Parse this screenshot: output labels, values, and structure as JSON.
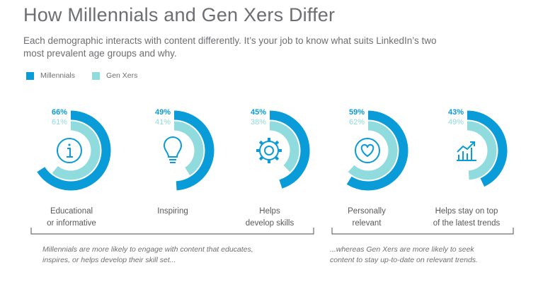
{
  "title": "How Millennials and Gen Xers Differ",
  "subtitle": "Each demographic interacts with content differently. It’s your job to know what suits LinkedIn’s two most prevalent age groups and why.",
  "colors": {
    "millennials": "#0a9bd9",
    "genx": "#8fdbde",
    "icon": "#0a9bd9",
    "text": "#6d6e71"
  },
  "chart_data": {
    "type": "donut",
    "series": [
      {
        "name": "Millennials",
        "values": [
          66,
          49,
          45,
          59,
          43
        ]
      },
      {
        "name": "Gen Xers",
        "values": [
          61,
          41,
          38,
          62,
          49
        ]
      }
    ],
    "categories": [
      {
        "label_line1": "Educational",
        "label_line2": "or informative",
        "icon": "info-icon",
        "millennials_label": "66%",
        "genx_label": "61%"
      },
      {
        "label_line1": "Inspiring",
        "label_line2": "",
        "icon": "lightbulb-icon",
        "millennials_label": "49%",
        "genx_label": "41%"
      },
      {
        "label_line1": "Helps",
        "label_line2": "develop skills",
        "icon": "gear-icon",
        "millennials_label": "45%",
        "genx_label": "38%"
      },
      {
        "label_line1": "Personally",
        "label_line2": "relevant",
        "icon": "heart-icon",
        "millennials_label": "59%",
        "genx_label": "62%"
      },
      {
        "label_line1": "Helps stay on top",
        "label_line2": "of the latest trends",
        "icon": "trend-chart-icon",
        "millennials_label": "43%",
        "genx_label": "49%"
      }
    ],
    "legend_position": "top-left"
  },
  "notes": {
    "left_line1": "Millennials are more likely to engage with content that educates,",
    "left_line2": "inspires, or helps develop their skill set...",
    "right_line1": "...whereas Gen Xers are more likely to seek",
    "right_line2": "content to stay up-to-date on relevant trends."
  }
}
